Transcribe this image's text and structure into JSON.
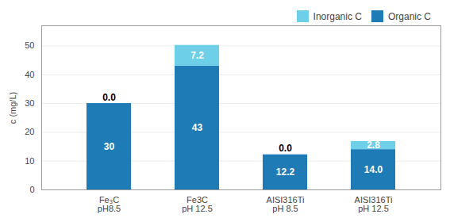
{
  "chart_data": {
    "type": "bar",
    "stacked": true,
    "categories": [
      "Fe₃C\npH8.5",
      "Fe3C\npH 12.5",
      "AISI316Ti\npH 8.5",
      "AISI316Ti\npH 12.5"
    ],
    "series": [
      {
        "name": "Organic C",
        "color": "#1F7BB5",
        "values": [
          30,
          43,
          12.2,
          14.0
        ],
        "value_labels": [
          "30",
          "43",
          "12.2",
          "14.0"
        ]
      },
      {
        "name": "Inorganic C",
        "color": "#6DD0E8",
        "values": [
          0.0,
          7.2,
          0.0,
          2.8
        ],
        "value_labels": [
          "0.0",
          "7.2",
          "0.0",
          "2.8"
        ]
      }
    ],
    "ylabel": "c (mg/L)",
    "ylim": [
      0,
      57
    ],
    "yticks": [
      0,
      10,
      20,
      30,
      40,
      50
    ],
    "grid": true,
    "legend": "top-right",
    "data_labels": true
  }
}
